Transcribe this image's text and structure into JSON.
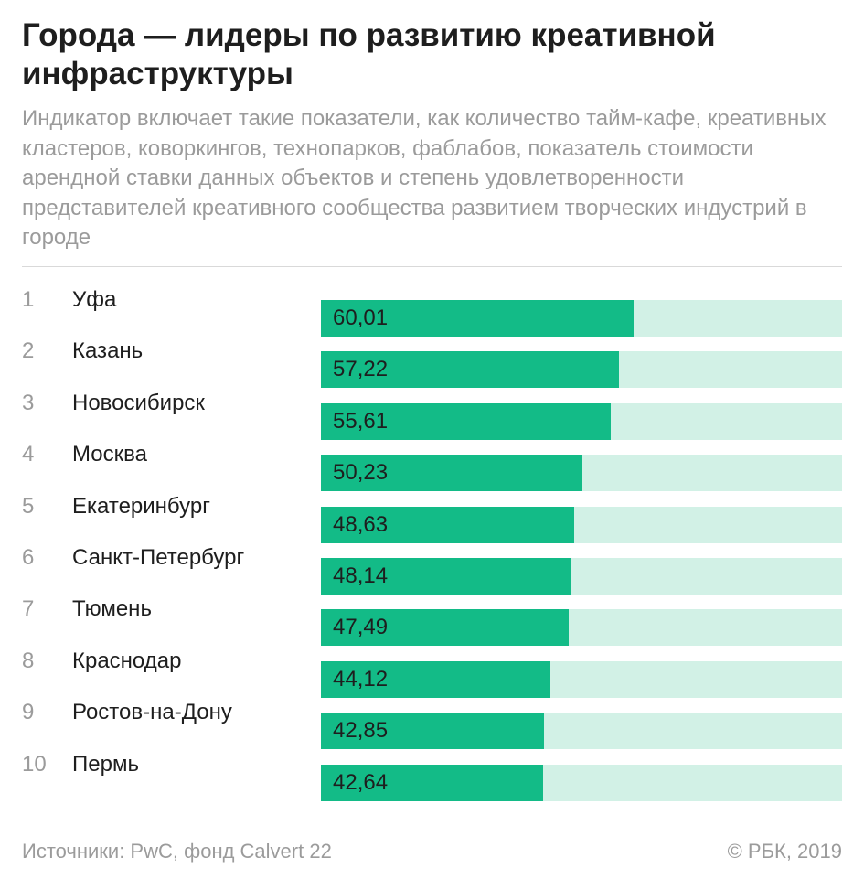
{
  "colors": {
    "bar_fill": "#13bb87",
    "bar_track": "#d2f1e6",
    "text_dark": "#1e1e1e",
    "text_muted": "#9b9b9b"
  },
  "header": {
    "title": "Города — лидеры по развитию креативной инфраструктуры",
    "subtitle": "Индикатор включает такие показатели, как количество тайм-кафе, креативных кластеров, коворкингов, технопарков, фаблабов, показатель стоимости арендной ставки данных объектов и степень удовлетворенности представителей креативного сообщества развитием творческих индустрий в городе"
  },
  "chart_data": {
    "type": "bar",
    "orientation": "horizontal",
    "xlim": [
      0,
      100
    ],
    "ranks": [
      "1",
      "2",
      "3",
      "4",
      "5",
      "6",
      "7",
      "8",
      "9",
      "10"
    ],
    "categories": [
      "Уфа",
      "Казань",
      "Новосибирск",
      "Москва",
      "Екатеринбург",
      "Санкт-Петербург",
      "Тюмень",
      "Краснодар",
      "Ростов-на-Дону",
      "Пермь"
    ],
    "values": [
      60.01,
      57.22,
      55.61,
      50.23,
      48.63,
      48.14,
      47.49,
      44.12,
      42.85,
      42.64
    ],
    "value_labels": [
      "60,01",
      "57,22",
      "55,61",
      "50,23",
      "48,63",
      "48,14",
      "47,49",
      "44,12",
      "42,85",
      "42,64"
    ]
  },
  "footer": {
    "source": "Источники: PwC, фонд Calvert 22",
    "copyright": "© РБК, 2019"
  }
}
